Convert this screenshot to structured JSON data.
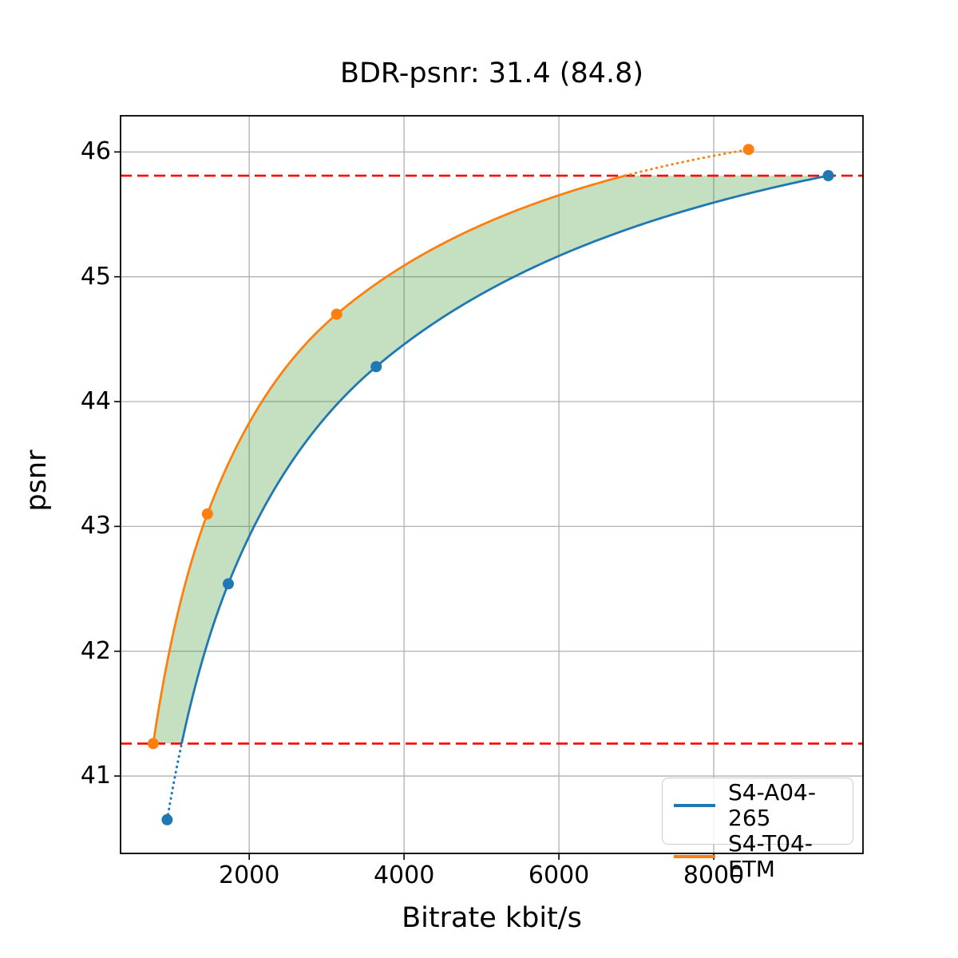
{
  "title": "BDR-psnr: 31.4 (84.8)",
  "chart_data": {
    "type": "line",
    "title": "BDR-psnr: 31.4 (84.8)",
    "xlabel": "Bitrate kbit/s",
    "ylabel": "psnr",
    "xlim": [
      338,
      9928
    ],
    "ylim": [
      40.38,
      46.29
    ],
    "x_ticks": [
      2000,
      4000,
      6000,
      8000
    ],
    "y_ticks": [
      41,
      42,
      43,
      44,
      45,
      46
    ],
    "grid": true,
    "grid_color": "#b0b0b0",
    "interpolation": "pchip-log10x",
    "series": [
      {
        "name": "S4-A04-265",
        "color": "#1f77b4",
        "points": [
          [
            940,
            40.65
          ],
          [
            1730,
            42.54
          ],
          [
            3640,
            44.28
          ],
          [
            9480,
            45.81
          ]
        ]
      },
      {
        "name": "S4-T04-ETM",
        "color": "#ff7f0e",
        "points": [
          [
            760,
            41.26
          ],
          [
            1460,
            43.1
          ],
          [
            3130,
            44.7
          ],
          [
            8450,
            46.02
          ]
        ]
      }
    ],
    "overlap_lines": {
      "color": "#ff0000",
      "style": "dashed",
      "y_values": [
        41.26,
        45.81
      ]
    },
    "shaded_region": {
      "color": "#2e8b22",
      "opacity": 0.28,
      "between": [
        "S4-T04-ETM",
        "S4-A04-265"
      ]
    },
    "legend": {
      "position": "lower right",
      "entries": [
        "S4-A04-265",
        "S4-T04-ETM"
      ]
    }
  }
}
